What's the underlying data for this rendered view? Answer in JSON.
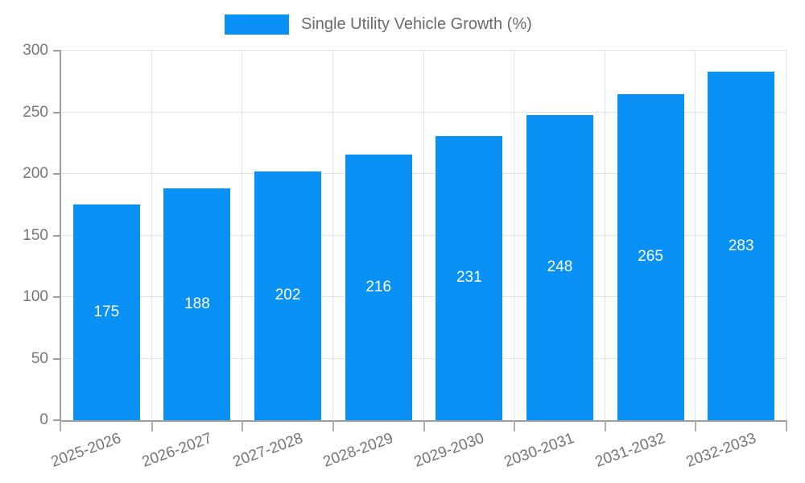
{
  "chart_data": {
    "type": "bar",
    "title": "",
    "legend_label": "Single Utility Vehicle Growth (%)",
    "legend_position": "top",
    "categories": [
      "2025-2026",
      "2026-2027",
      "2027-2028",
      "2028-2029",
      "2029-2030",
      "2030-2031",
      "2031-2032",
      "2032-2033"
    ],
    "values": [
      175,
      188,
      202,
      216,
      231,
      248,
      265,
      283
    ],
    "data_labels": [
      "175",
      "188",
      "202",
      "216",
      "231",
      "248",
      "265",
      "283"
    ],
    "xlabel": "",
    "ylabel": "",
    "ylim": [
      0,
      300
    ],
    "yticks": [
      0,
      50,
      100,
      150,
      200,
      250,
      300
    ],
    "grid": "both",
    "colors": {
      "bar": "#0a91f5",
      "axis": "#9e9e9e",
      "grid": "#e3e3e3",
      "tick_text": "#757575",
      "bar_label": "#ffffff",
      "legend_text": "#6b6b6b"
    }
  }
}
